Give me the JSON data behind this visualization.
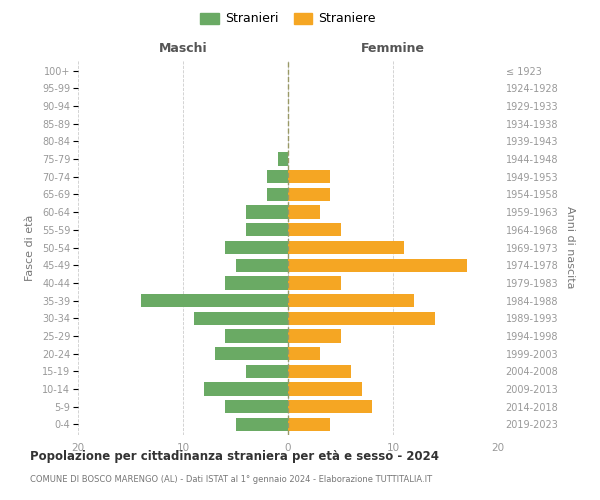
{
  "age_groups": [
    "0-4",
    "5-9",
    "10-14",
    "15-19",
    "20-24",
    "25-29",
    "30-34",
    "35-39",
    "40-44",
    "45-49",
    "50-54",
    "55-59",
    "60-64",
    "65-69",
    "70-74",
    "75-79",
    "80-84",
    "85-89",
    "90-94",
    "95-99",
    "100+"
  ],
  "birth_years": [
    "2019-2023",
    "2014-2018",
    "2009-2013",
    "2004-2008",
    "1999-2003",
    "1994-1998",
    "1989-1993",
    "1984-1988",
    "1979-1983",
    "1974-1978",
    "1969-1973",
    "1964-1968",
    "1959-1963",
    "1954-1958",
    "1949-1953",
    "1944-1948",
    "1939-1943",
    "1934-1938",
    "1929-1933",
    "1924-1928",
    "≤ 1923"
  ],
  "maschi": [
    5,
    6,
    8,
    4,
    7,
    6,
    9,
    14,
    6,
    5,
    6,
    4,
    4,
    2,
    2,
    1,
    0,
    0,
    0,
    0,
    0
  ],
  "femmine": [
    4,
    8,
    7,
    6,
    3,
    5,
    14,
    12,
    5,
    17,
    11,
    5,
    3,
    4,
    4,
    0,
    0,
    0,
    0,
    0,
    0
  ],
  "maschi_color": "#6aaa64",
  "femmine_color": "#f5a623",
  "maschi_label": "Stranieri",
  "femmine_label": "Straniere",
  "title": "Popolazione per cittadinanza straniera per età e sesso - 2024",
  "subtitle": "COMUNE DI BOSCO MARENGO (AL) - Dati ISTAT al 1° gennaio 2024 - Elaborazione TUTTITALIA.IT",
  "xlabel_left": "Maschi",
  "xlabel_right": "Femmine",
  "ylabel_left": "Fasce di età",
  "ylabel_right": "Anni di nascita",
  "xlim": 20,
  "background_color": "#ffffff",
  "grid_color": "#cccccc",
  "bar_height": 0.75,
  "center_line_color": "#999966",
  "axis_label_color": "#777777",
  "tick_label_color": "#999999",
  "header_color": "#555555"
}
